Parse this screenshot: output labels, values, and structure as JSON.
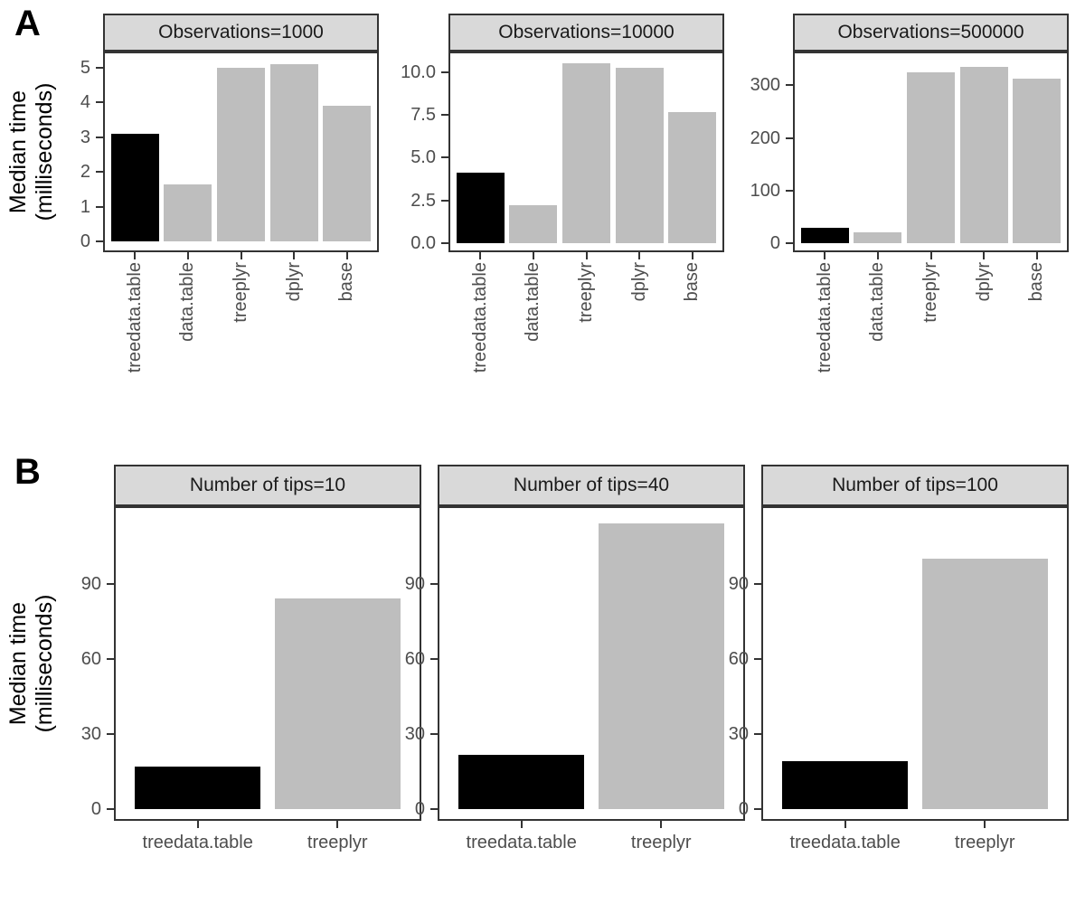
{
  "panels": {
    "A": {
      "label": "A",
      "y_axis_title": "Median time\n(milliseconds)"
    },
    "B": {
      "label": "B",
      "y_axis_title": "Median time\n(milliseconds)"
    }
  },
  "style": {
    "background": "#ffffff",
    "strip_bg": "#d9d9d9",
    "strip_text": "#1a1a1a",
    "panel_border": "#333333",
    "tick_color": "#333333",
    "axis_text_color": "#4d4d4d",
    "bar_black": "#000000",
    "bar_gray": "#bebebe"
  },
  "chart_data": [
    {
      "type": "bar",
      "panel": "A",
      "title": "Observations=1000",
      "categories": [
        "treedata.table",
        "data.table",
        "treeplyr",
        "dplyr",
        "base"
      ],
      "values": [
        3.1,
        1.65,
        5.0,
        5.1,
        3.9
      ],
      "bar_colors": [
        "#000000",
        "#bebebe",
        "#bebebe",
        "#bebebe",
        "#bebebe"
      ],
      "ylabel": "Median time (milliseconds)",
      "ytick_values": [
        0,
        1,
        2,
        3,
        4,
        5
      ],
      "ytick_labels": [
        "0",
        "1",
        "2",
        "3",
        "4",
        "5"
      ],
      "ylim": [
        -0.31,
        5.47
      ],
      "grid": false,
      "legend": "none",
      "x_labels_rotated_90": true
    },
    {
      "type": "bar",
      "panel": "A",
      "title": "Observations=10000",
      "categories": [
        "treedata.table",
        "data.table",
        "treeplyr",
        "dplyr",
        "base"
      ],
      "values": [
        4.1,
        2.2,
        10.5,
        10.25,
        7.65
      ],
      "bar_colors": [
        "#000000",
        "#bebebe",
        "#bebebe",
        "#bebebe",
        "#bebebe"
      ],
      "ylabel": "Median time (milliseconds)",
      "ytick_values": [
        0,
        2.5,
        5,
        7.5,
        10
      ],
      "ytick_labels": [
        "0.0",
        "2.5",
        "5.0",
        "7.5",
        "10.0"
      ],
      "ylim": [
        -0.53,
        11.2
      ],
      "grid": false,
      "legend": "none",
      "x_labels_rotated_90": true
    },
    {
      "type": "bar",
      "panel": "A",
      "title": "Observations=500000",
      "categories": [
        "treedata.table",
        "data.table",
        "treeplyr",
        "dplyr",
        "base"
      ],
      "values": [
        30,
        20,
        325,
        335,
        313
      ],
      "bar_colors": [
        "#000000",
        "#bebebe",
        "#bebebe",
        "#bebebe",
        "#bebebe"
      ],
      "ylabel": "Median time (milliseconds)",
      "ytick_values": [
        0,
        100,
        200,
        300
      ],
      "ytick_labels": [
        "0",
        "100",
        "200",
        "300"
      ],
      "ylim": [
        -17,
        364
      ],
      "grid": false,
      "legend": "none",
      "x_labels_rotated_90": true
    },
    {
      "type": "bar",
      "panel": "B",
      "title": "Number of tips=10",
      "categories": [
        "treedata.table",
        "treeplyr"
      ],
      "values": [
        17,
        84
      ],
      "bar_colors": [
        "#000000",
        "#bebebe"
      ],
      "ylabel": "Median time (milliseconds)",
      "ytick_values": [
        0,
        30,
        60,
        90
      ],
      "ytick_labels": [
        "0",
        "30",
        "60",
        "90"
      ],
      "ylim": [
        -4.7,
        121
      ],
      "grid": false,
      "legend": "none",
      "x_labels_rotated_90": false
    },
    {
      "type": "bar",
      "panel": "B",
      "title": "Number of tips=40",
      "categories": [
        "treedata.table",
        "treeplyr"
      ],
      "values": [
        21.5,
        114
      ],
      "bar_colors": [
        "#000000",
        "#bebebe"
      ],
      "ylabel": "Median time (milliseconds)",
      "ytick_values": [
        0,
        30,
        60,
        90
      ],
      "ytick_labels": [
        "0",
        "30",
        "60",
        "90"
      ],
      "ylim": [
        -4.7,
        121
      ],
      "grid": false,
      "legend": "none",
      "x_labels_rotated_90": false
    },
    {
      "type": "bar",
      "panel": "B",
      "title": "Number of tips=100",
      "categories": [
        "treedata.table",
        "treeplyr"
      ],
      "values": [
        19,
        100
      ],
      "bar_colors": [
        "#000000",
        "#bebebe"
      ],
      "ylabel": "Median time (milliseconds)",
      "ytick_values": [
        0,
        30,
        60,
        90
      ],
      "ytick_labels": [
        "0",
        "30",
        "60",
        "90"
      ],
      "ylim": [
        -4.7,
        121
      ],
      "grid": false,
      "legend": "none",
      "x_labels_rotated_90": false
    }
  ]
}
